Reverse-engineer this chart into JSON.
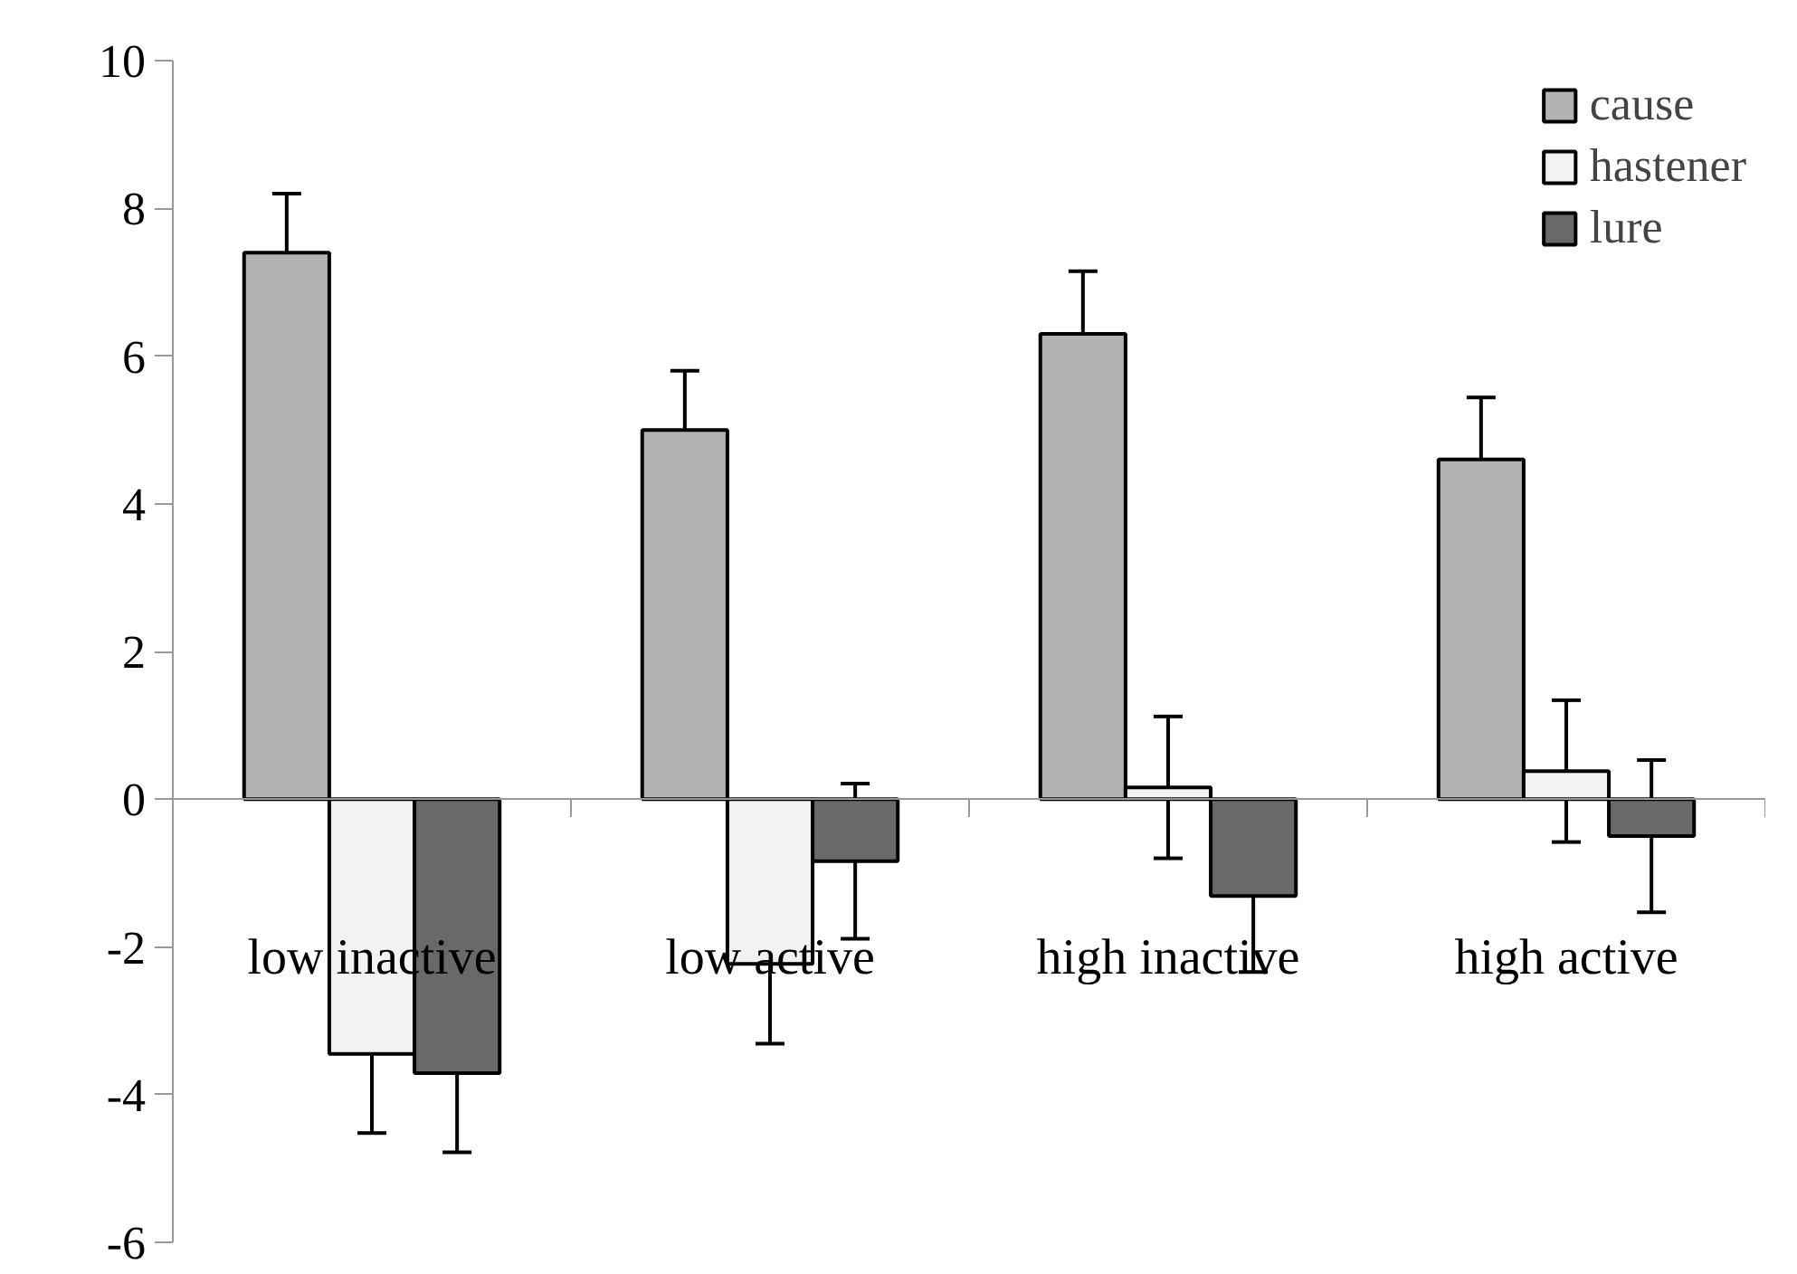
{
  "chart_data": {
    "type": "bar",
    "categories": [
      "low inactive",
      "low active",
      "high inactive",
      "high active"
    ],
    "series": [
      {
        "name": "cause",
        "color": "#b3b3b3",
        "values": [
          7.4,
          5.0,
          6.3,
          4.6
        ],
        "errors": [
          0.8,
          0.8,
          0.85,
          0.84
        ]
      },
      {
        "name": "hastener",
        "color": "#f2f2f2",
        "values": [
          -3.45,
          -2.23,
          0.16,
          0.38
        ],
        "errors": [
          1.07,
          1.08,
          0.96,
          0.96
        ]
      },
      {
        "name": "lure",
        "color": "#696969",
        "values": [
          -3.71,
          -0.84,
          -1.31,
          -0.5
        ],
        "errors": [
          1.07,
          1.05,
          1.03,
          1.03
        ]
      }
    ],
    "ylim": [
      -6,
      10
    ],
    "yticks": [
      -6,
      -4,
      -2,
      0,
      2,
      4,
      6,
      8,
      10
    ],
    "grid": false,
    "legend": "top right"
  }
}
